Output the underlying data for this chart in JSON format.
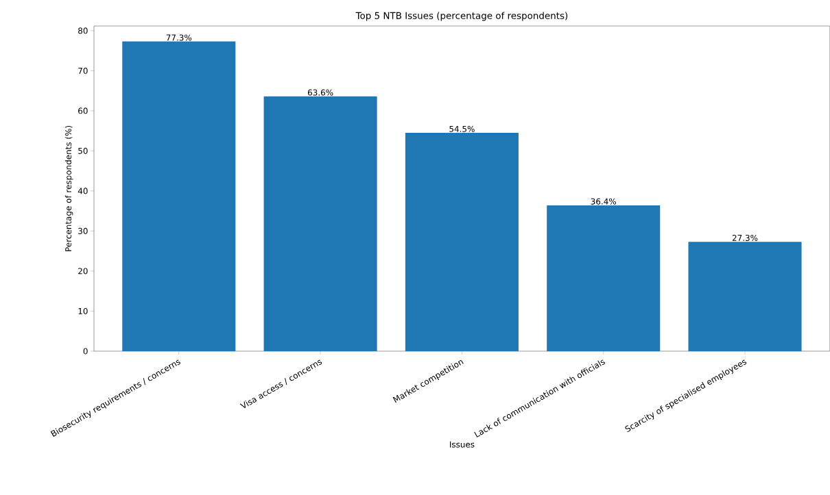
{
  "chart_data": {
    "type": "bar",
    "title": "Top 5 NTB Issues (percentage of respondents)",
    "xlabel": "Issues",
    "ylabel": "Percentage of respondents (%)",
    "categories": [
      "Biosecurity requirements / concerns",
      "Visa access / concerns",
      "Market competition",
      "Lack of communication with officials",
      "Scarcity of specialised employees"
    ],
    "values": [
      77.3,
      63.6,
      54.5,
      36.4,
      27.3
    ],
    "value_labels": [
      "77.3%",
      "63.6%",
      "54.5%",
      "36.4%",
      "27.3%"
    ],
    "color": "#1f77b4",
    "ylim": [
      0,
      81.17
    ],
    "yticks": [
      0,
      10,
      20,
      30,
      40,
      50,
      60,
      70,
      80
    ],
    "grid": false
  }
}
